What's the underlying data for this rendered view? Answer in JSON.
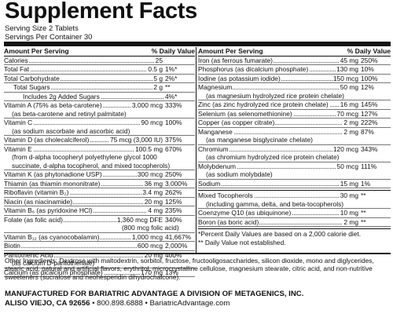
{
  "title": "Supplement Facts",
  "serving_size": "Serving Size 2 Tablets",
  "servings_per_container": "Servings Per Container 30",
  "header": {
    "amount": "Amount Per Serving",
    "dv": "% Daily Value"
  },
  "left_rows": [
    {
      "name": "Calories",
      "amount": "25",
      "dv": "",
      "indent": 0
    },
    {
      "name": "Total Fat",
      "amount": "0.5 g",
      "dv": "1%*",
      "indent": 0
    },
    {
      "name": "Total Carbohydrate",
      "amount": "5 g",
      "dv": "2%*",
      "indent": 0
    },
    {
      "name": "Total Sugars",
      "amount": "2 g",
      "dv": "**",
      "indent": 1
    },
    {
      "name": "Includes 2g Added Sugars",
      "amount": "",
      "dv": "4%*",
      "indent": 2
    },
    {
      "name": "Vitamin A (75% as beta-carotene)",
      "amount": "3,000 mcg",
      "dv": "333%",
      "indent": 0,
      "sub": [
        "(as beta-carotene and retinyl palmitate)"
      ]
    },
    {
      "name": "Vitamin C",
      "amount": "90 mcg",
      "dv": "100%",
      "indent": 0,
      "sub": [
        "(as sodium ascorbate and ascorbic acid)"
      ]
    },
    {
      "name": "Vitamin D (as cholecalciferol)",
      "amount": "75 mcg (3,000 IU)",
      "dv": "375%",
      "indent": 0
    },
    {
      "name": "Vitamin E",
      "amount": "100.5 mg",
      "dv": "670%",
      "indent": 0,
      "sub": [
        "(from d-alpha tocopheryl polyethylene glycol 1000",
        "succinate, d-alpha tocopherol, and mixed tocopherols)"
      ]
    },
    {
      "name": "Vitamin K (as phytonadione USP)",
      "amount": "300 mcg",
      "dv": "250%",
      "indent": 0
    },
    {
      "name": "Thiamin (as thiamin mononitrate)",
      "amount": "36 mg",
      "dv": "3,000%",
      "indent": 0
    },
    {
      "name": "Riboflavin (vitamin B₂)",
      "amount": "3.4 mg",
      "dv": "262%",
      "indent": 0
    },
    {
      "name": "Niacin (as niacinamide)",
      "amount": "20 mg",
      "dv": "125%",
      "indent": 0
    },
    {
      "name": "Vitamin B₆ (as pyridoxine HCl)",
      "amount": "4 mg",
      "dv": "235%",
      "indent": 0
    },
    {
      "name": "Folate (as folic acid)",
      "amount": "1,360 mcg DFE",
      "dv": "340%",
      "indent": 0,
      "sub": [
        "(800 mcg folic acid)"
      ],
      "sub_indent": 150
    },
    {
      "name": "Vitamin B₁₂ (as cyanocobalamin)",
      "amount": "1,000 mcg",
      "dv": "41,667%",
      "indent": 0
    },
    {
      "name": "Biotin",
      "amount": "600 mcg",
      "dv": "2,000%",
      "indent": 0
    },
    {
      "name": "Pantothenic Acid",
      "amount": "20 mg",
      "dv": "400%",
      "indent": 0,
      "sub": [
        "(as calcium D-pantothenate)"
      ]
    },
    {
      "name": "Calcium (as dicalcium phosphate)",
      "amount": "170 mg",
      "dv": "13%",
      "indent": 0
    }
  ],
  "right_rows": [
    {
      "name": "Iron (as ferrous fumarate)",
      "amount": "45 mg",
      "dv": "250%"
    },
    {
      "name": "Phosphorus (as dicalcium phosphate)",
      "amount": "130 mg",
      "dv": "10%"
    },
    {
      "name": "Iodine (as potassium iodide)",
      "amount": "150 mcg",
      "dv": "100%"
    },
    {
      "name": "Magnesium",
      "amount": "50 mg",
      "dv": "12%",
      "sub": [
        "(as magnesium hydrolyzed rice protein chelate)"
      ]
    },
    {
      "name": "Zinc (as zinc hydrolyzed rice protein chelate)",
      "amount": "16 mg",
      "dv": "145%"
    },
    {
      "name": "Selenium (as selenomethionine)",
      "amount": "70 mcg",
      "dv": "127%"
    },
    {
      "name": "Copper (as copper citrate)",
      "amount": "2 mg",
      "dv": "222%"
    },
    {
      "name": "Manganese",
      "amount": "2 mg",
      "dv": "87%",
      "sub": [
        "(as manganese bisglycinate chelate)"
      ]
    },
    {
      "name": "Chromium",
      "amount": "120 mcg",
      "dv": "343%",
      "sub": [
        "(as chromium hydrolyzed rice protein chelate)"
      ]
    },
    {
      "name": "Molybdenum",
      "amount": "50 mcg",
      "dv": "111%",
      "sub": [
        "(as sodium molybdate)"
      ]
    },
    {
      "name": "Sodium",
      "amount": "15 mg",
      "dv": "1%"
    }
  ],
  "right_rows_2": [
    {
      "name": "Mixed Tocopherols",
      "amount": "30 mg",
      "dv": "**",
      "sub": [
        "(including gamma, delta, and beta-tocopherols)"
      ]
    },
    {
      "name": "Coenzyme Q10 (as ubiquinone)",
      "amount": "10 mg",
      "dv": "**"
    },
    {
      "name": "Boron (as boric acid)",
      "amount": "2 mg",
      "dv": "**"
    }
  ],
  "footnotes": [
    "*Percent Daily Values are based on a 2,000 calorie diet.",
    "** Daily Value not established."
  ],
  "other_ingredients": "Other Ingredients: Dextrose with maltodextrin, sorbitol, fructose, fructooligosaccharides, silicon dioxide, mono and diglycerides, stearic acid, natural and artificial flavors, erythritol, microcrystalline cellulose, magnesium stearate, citric acid, and non-nutritive sweeteners (sucralose and neohesperidin dihydrochalcone).",
  "manufacturer": {
    "line1": "MANUFACTURED FOR BARIATRIC ADVANTAGE A DIVISION OF METAGENICS, INC.",
    "city": "ALISO VIEJO, CA 92656",
    "contact": " • 800.898.6888 • BariatricAdvantage.com"
  }
}
